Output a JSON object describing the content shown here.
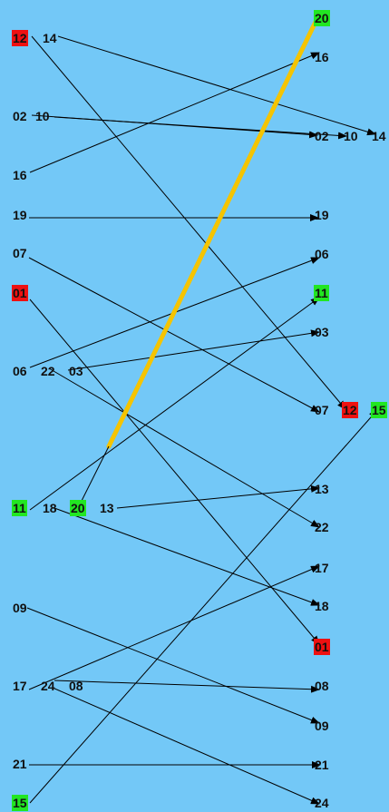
{
  "colors": {
    "background": "#73c8f7",
    "red": "#ee1111",
    "green": "#22e622",
    "highlight_link": "#f5c400",
    "line": "#000000"
  },
  "labels": [
    {
      "id": "L12",
      "text": "12",
      "color": "red"
    },
    {
      "id": "L14",
      "text": "14",
      "color": "none"
    },
    {
      "id": "L02",
      "text": "02",
      "color": "none"
    },
    {
      "id": "L10",
      "text": "10",
      "color": "none"
    },
    {
      "id": "L16",
      "text": "16",
      "color": "none"
    },
    {
      "id": "L19",
      "text": "19",
      "color": "none"
    },
    {
      "id": "L07",
      "text": "07",
      "color": "none"
    },
    {
      "id": "L01",
      "text": "01",
      "color": "red"
    },
    {
      "id": "L06",
      "text": "06",
      "color": "none"
    },
    {
      "id": "L22",
      "text": "22",
      "color": "none"
    },
    {
      "id": "L03",
      "text": "03",
      "color": "none"
    },
    {
      "id": "L11",
      "text": "11",
      "color": "green"
    },
    {
      "id": "L18",
      "text": "18",
      "color": "none"
    },
    {
      "id": "L20",
      "text": "20",
      "color": "green"
    },
    {
      "id": "L13",
      "text": "13",
      "color": "none"
    },
    {
      "id": "L09",
      "text": "09",
      "color": "none"
    },
    {
      "id": "L17",
      "text": "17",
      "color": "none"
    },
    {
      "id": "L24",
      "text": "24",
      "color": "none"
    },
    {
      "id": "L08",
      "text": "08",
      "color": "none"
    },
    {
      "id": "L21",
      "text": "21",
      "color": "none"
    },
    {
      "id": "L15",
      "text": "15",
      "color": "green"
    },
    {
      "id": "R20",
      "text": "20",
      "color": "green"
    },
    {
      "id": "R16",
      "text": "16",
      "color": "none"
    },
    {
      "id": "R02",
      "text": "02",
      "color": "none"
    },
    {
      "id": "R10",
      "text": "10",
      "color": "none"
    },
    {
      "id": "R14",
      "text": "14",
      "color": "none"
    },
    {
      "id": "R19",
      "text": "19",
      "color": "none"
    },
    {
      "id": "R06",
      "text": "06",
      "color": "none"
    },
    {
      "id": "R11",
      "text": "11",
      "color": "green"
    },
    {
      "id": "R03",
      "text": "03",
      "color": "none"
    },
    {
      "id": "R07",
      "text": "07",
      "color": "none"
    },
    {
      "id": "R12",
      "text": "12",
      "color": "red"
    },
    {
      "id": "R15",
      "text": "15",
      "color": "green"
    },
    {
      "id": "R13",
      "text": "13",
      "color": "none"
    },
    {
      "id": "R22",
      "text": "22",
      "color": "none"
    },
    {
      "id": "R17",
      "text": "17",
      "color": "none"
    },
    {
      "id": "R18",
      "text": "18",
      "color": "none"
    },
    {
      "id": "R01",
      "text": "01",
      "color": "red"
    },
    {
      "id": "R08",
      "text": "08",
      "color": "none"
    },
    {
      "id": "R09",
      "text": "09",
      "color": "none"
    },
    {
      "id": "R21",
      "text": "21",
      "color": "none"
    },
    {
      "id": "R24",
      "text": "24",
      "color": "none"
    }
  ],
  "links": [
    {
      "from": "L12",
      "to": "R12"
    },
    {
      "from": "L14",
      "to": "R14"
    },
    {
      "from": "L02",
      "to": "R02"
    },
    {
      "from": "L10",
      "to": "R10"
    },
    {
      "from": "L16",
      "to": "R16"
    },
    {
      "from": "L19",
      "to": "R19"
    },
    {
      "from": "L07",
      "to": "R07"
    },
    {
      "from": "L01",
      "to": "R01"
    },
    {
      "from": "L06",
      "to": "R06"
    },
    {
      "from": "L22",
      "to": "R22"
    },
    {
      "from": "L03",
      "to": "R03"
    },
    {
      "from": "L11",
      "to": "R11"
    },
    {
      "from": "L18",
      "to": "R18"
    },
    {
      "from": "L20",
      "to": "R20",
      "highlight": true
    },
    {
      "from": "L13",
      "to": "R13"
    },
    {
      "from": "L09",
      "to": "R09"
    },
    {
      "from": "L17",
      "to": "R17"
    },
    {
      "from": "L24",
      "to": "R24"
    },
    {
      "from": "L08",
      "to": "R08"
    },
    {
      "from": "L21",
      "to": "R21"
    },
    {
      "from": "L15",
      "to": "R15"
    }
  ]
}
